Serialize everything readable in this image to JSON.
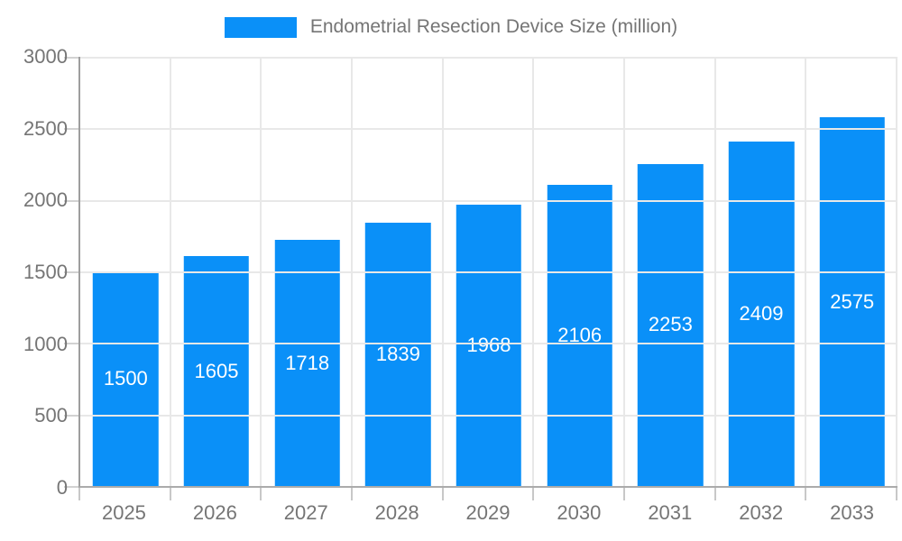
{
  "chart_data": {
    "type": "bar",
    "title": "Endometrial Resection Device Size (million)",
    "categories": [
      "2025",
      "2026",
      "2027",
      "2028",
      "2029",
      "2030",
      "2031",
      "2032",
      "2033"
    ],
    "values": [
      1500,
      1605,
      1718,
      1839,
      1968,
      2106,
      2253,
      2409,
      2575
    ],
    "xlabel": "",
    "ylabel": "",
    "ylim": [
      0,
      3000
    ],
    "yticks": [
      0,
      500,
      1000,
      1500,
      2000,
      2500,
      3000
    ],
    "grid": true,
    "legend_position": "top",
    "bar_color": "#0a90f8",
    "value_label_color": "#ffffff",
    "axis_text_color": "#757575",
    "grid_color": "#e8e8e8"
  },
  "legend": {
    "label": "Endometrial Resection Device Size (million)"
  }
}
